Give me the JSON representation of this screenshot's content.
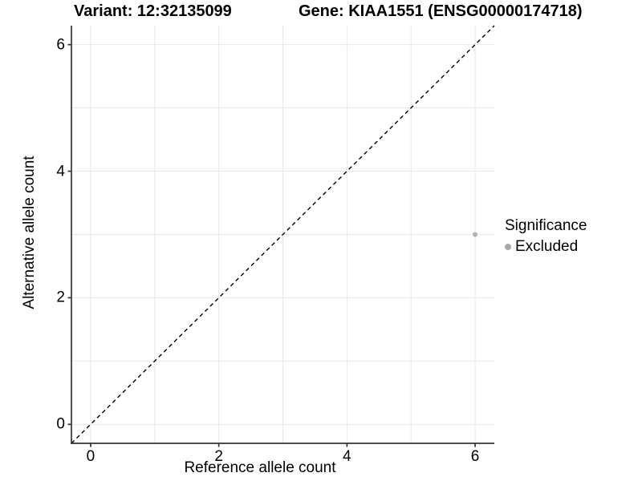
{
  "titles": {
    "left": "Variant: 12:32135099",
    "right": "Gene: KIAA1551 (ENSG00000174718)"
  },
  "chart_data": {
    "type": "scatter",
    "xlabel": "Reference allele count",
    "ylabel": "Alternative allele count",
    "xlim": [
      -0.3,
      6.3
    ],
    "ylim": [
      -0.3,
      6.3
    ],
    "x_ticks": [
      0,
      2,
      4,
      6
    ],
    "y_ticks": [
      0,
      2,
      4,
      6
    ],
    "gridline_values": [
      0,
      1,
      2,
      3,
      4,
      5,
      6
    ],
    "grid": "on",
    "series": [
      {
        "name": "Excluded",
        "color": "#b0b0b0",
        "points": [
          {
            "x": 6,
            "y": 3
          }
        ]
      }
    ],
    "reference_line": {
      "slope": 1,
      "intercept": 0,
      "style": "dashed",
      "color": "#000000"
    },
    "legend": {
      "title": "Significance",
      "position": "right",
      "items": [
        {
          "label": "Excluded",
          "color": "#a8a8a8"
        }
      ]
    }
  },
  "colors": {
    "background": "#ffffff",
    "gridline": "#e8e8e8",
    "axis": "#333333",
    "text": "#000000",
    "point": "#b0b0b0"
  }
}
